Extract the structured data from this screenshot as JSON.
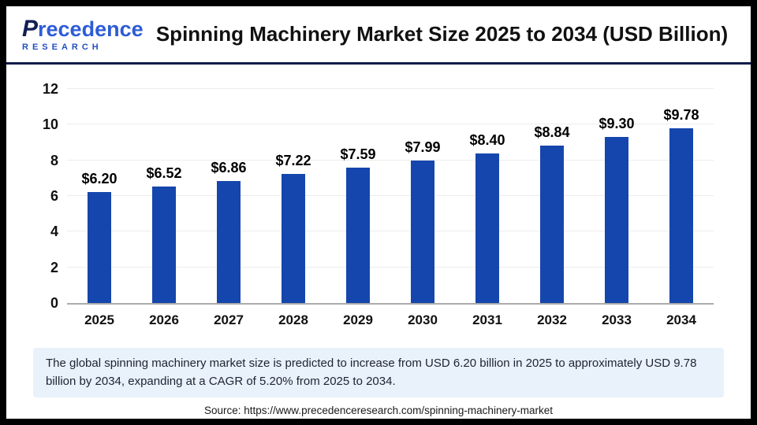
{
  "header": {
    "logo": {
      "name_first_letter": "P",
      "name_rest": "recedence",
      "subtitle": "RESEARCH"
    },
    "title": "Spinning Machinery Market Size 2025 to 2034 (USD Billion)"
  },
  "chart_data": {
    "type": "bar",
    "title": "Spinning Machinery Market Size 2025 to 2034 (USD Billion)",
    "categories": [
      "2025",
      "2026",
      "2027",
      "2028",
      "2029",
      "2030",
      "2031",
      "2032",
      "2033",
      "2034"
    ],
    "values": [
      6.2,
      6.52,
      6.86,
      7.22,
      7.59,
      7.99,
      8.4,
      8.84,
      9.3,
      9.78
    ],
    "display_values": [
      "$6.20",
      "$6.52",
      "$6.86",
      "$7.22",
      "$7.59",
      "$7.99",
      "$8.40",
      "$8.84",
      "$9.30",
      "$9.78"
    ],
    "xlabel": "",
    "ylabel": "",
    "ylim": [
      0,
      12
    ],
    "yticks": [
      0,
      2,
      4,
      6,
      8,
      10,
      12
    ],
    "grid": true,
    "legend_position": "none",
    "bar_color": "#1546ad"
  },
  "summary": {
    "text": "The global spinning machinery market size is predicted to increase from USD 6.20 billion in 2025 to approximately USD 9.78 billion by 2034, expanding at a CAGR of 5.20% from 2025 to 2034."
  },
  "source": {
    "text": "Source: https://www.precedenceresearch.com/spinning-machinery-market"
  },
  "colors": {
    "bar": "#1546ad",
    "divider": "#111c4c",
    "summary_bg": "#e9f1fb",
    "logo_main": "#2e5cd6",
    "logo_p": "#131f55",
    "logo_research": "#2350c0"
  }
}
